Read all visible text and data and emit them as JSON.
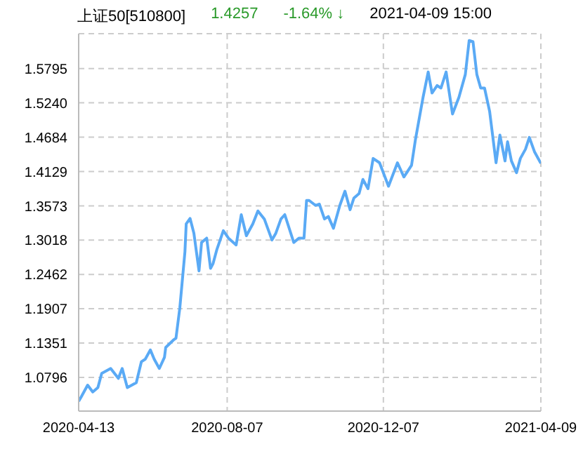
{
  "chart_data": {
    "type": "line",
    "title": "上证50[510800]",
    "annotations": [
      "1.4257",
      "-1.64% ↓",
      "2021-04-09 15:00"
    ],
    "x": [
      "2020-04-13",
      "2020-04-15",
      "2020-04-20",
      "2020-04-24",
      "2020-04-28",
      "2020-05-01",
      "2020-05-08",
      "2020-05-14",
      "2020-05-17",
      "2020-05-21",
      "2020-05-28",
      "2020-06-01",
      "2020-06-04",
      "2020-06-08",
      "2020-06-11",
      "2020-06-15",
      "2020-06-19",
      "2020-06-20",
      "2020-06-26",
      "2020-06-28",
      "2020-07-01",
      "2020-07-05",
      "2020-07-06",
      "2020-07-09",
      "2020-07-12",
      "2020-07-16",
      "2020-07-18",
      "2020-07-22",
      "2020-07-25",
      "2020-07-27",
      "2020-07-30",
      "2020-08-04",
      "2020-08-08",
      "2020-08-14",
      "2020-08-18",
      "2020-08-22",
      "2020-08-27",
      "2020-08-31",
      "2020-09-05",
      "2020-09-11",
      "2020-09-14",
      "2020-09-18",
      "2020-09-21",
      "2020-09-28",
      "2020-10-02",
      "2020-10-06",
      "2020-10-08",
      "2020-10-10",
      "2020-10-15",
      "2020-10-18",
      "2020-10-22",
      "2020-10-25",
      "2020-10-29",
      "2020-11-03",
      "2020-11-07",
      "2020-11-11",
      "2020-11-14",
      "2020-11-18",
      "2020-11-21",
      "2020-11-25",
      "2020-11-29",
      "2020-12-04",
      "2020-12-11",
      "2020-12-18",
      "2020-12-23",
      "2020-12-29",
      "2021-01-01",
      "2021-01-07",
      "2021-01-11",
      "2021-01-14",
      "2021-01-18",
      "2021-01-21",
      "2021-01-25",
      "2021-01-30",
      "2021-02-04",
      "2021-02-09",
      "2021-02-12",
      "2021-02-15",
      "2021-02-18",
      "2021-02-21",
      "2021-02-24",
      "2021-02-28",
      "2021-03-05",
      "2021-03-08",
      "2021-03-12",
      "2021-03-14",
      "2021-03-17",
      "2021-03-21",
      "2021-03-24",
      "2021-03-28",
      "2021-03-31",
      "2021-04-04",
      "2021-04-09"
    ],
    "series": [
      {
        "color": "#5aaaf5",
        "values": [
          1.041,
          1.048,
          1.067,
          1.056,
          1.063,
          1.086,
          1.094,
          1.078,
          1.094,
          1.063,
          1.071,
          1.105,
          1.109,
          1.124,
          1.109,
          1.094,
          1.112,
          1.128,
          1.14,
          1.143,
          1.192,
          1.283,
          1.328,
          1.337,
          1.313,
          1.252,
          1.298,
          1.305,
          1.256,
          1.264,
          1.287,
          1.317,
          1.305,
          1.294,
          1.343,
          1.309,
          1.328,
          1.349,
          1.336,
          1.302,
          1.313,
          1.336,
          1.343,
          1.298,
          1.305,
          1.305,
          1.366,
          1.366,
          1.358,
          1.36,
          1.336,
          1.34,
          1.321,
          1.358,
          1.381,
          1.351,
          1.37,
          1.377,
          1.4,
          1.385,
          1.434,
          1.427,
          1.389,
          1.427,
          1.404,
          1.423,
          1.464,
          1.533,
          1.574,
          1.54,
          1.552,
          1.548,
          1.574,
          1.506,
          1.533,
          1.57,
          1.625,
          1.623,
          1.57,
          1.548,
          1.548,
          1.51,
          1.427,
          1.472,
          1.43,
          1.461,
          1.43,
          1.411,
          1.434,
          1.449,
          1.468,
          1.445,
          1.426
        ]
      }
    ],
    "xlim": [
      "2020-04-13",
      "2021-04-09"
    ],
    "xticks": [
      "2020-04-13",
      "2020-08-07",
      "2020-12-07",
      "2021-04-09"
    ],
    "ylim": [
      1.025,
      1.636
    ],
    "yticks": [
      1.0796,
      1.1351,
      1.1907,
      1.2462,
      1.3018,
      1.3573,
      1.4129,
      1.4684,
      {
        "value": 1.524,
        "label": "1.5240"
      },
      1.5795
    ],
    "grid": true,
    "marker": "none",
    "line_style": "solid"
  }
}
